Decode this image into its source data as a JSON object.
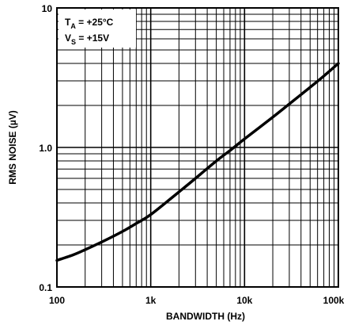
{
  "chart_data": {
    "type": "line",
    "x_scale": "log",
    "y_scale": "log",
    "xlim": [
      100,
      100000
    ],
    "ylim": [
      0.1,
      10
    ],
    "grid": true,
    "xlabel": "BANDWIDTH (Hz)",
    "ylabel": "RMS NOISE (µV)",
    "x_tick_labels": [
      "100",
      "1k",
      "10k",
      "100k"
    ],
    "y_tick_labels": [
      "0.1",
      "1.0",
      "10"
    ],
    "legend": {
      "position": "top-left",
      "line1": {
        "main": "T",
        "sub": "A",
        "rest": " = +25°C"
      },
      "line2": {
        "main": "V",
        "sub": "S",
        "rest": " = +15V"
      }
    },
    "series": [
      {
        "x": [
          100,
          150,
          200,
          300,
          500,
          700,
          1000,
          2000,
          3000,
          5000,
          7000,
          10000,
          20000,
          30000,
          50000,
          70000,
          100000
        ],
        "y": [
          0.155,
          0.17,
          0.185,
          0.21,
          0.25,
          0.285,
          0.33,
          0.48,
          0.6,
          0.8,
          0.95,
          1.15,
          1.65,
          2.05,
          2.7,
          3.25,
          4.0
        ]
      }
    ],
    "line_color": "#000000"
  }
}
